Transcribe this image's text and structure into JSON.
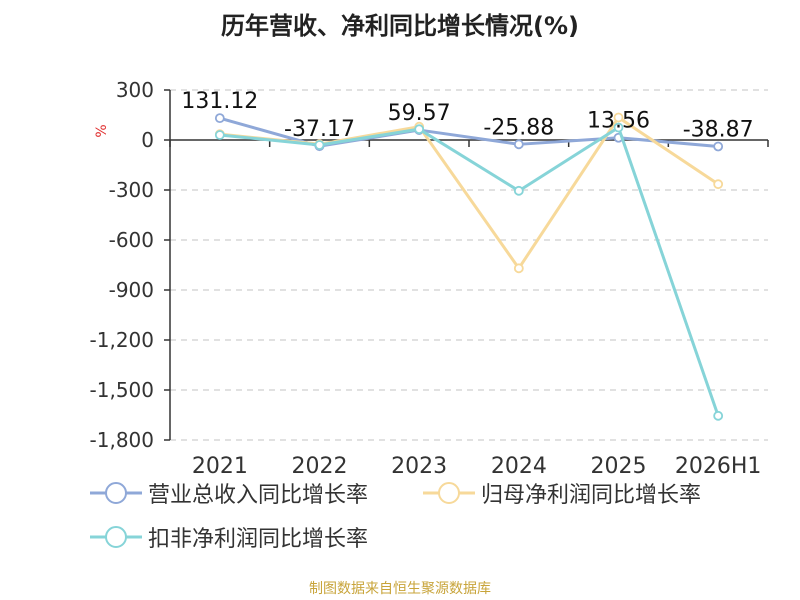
{
  "chart_data": {
    "type": "line",
    "title": "历年营收、净利同比增长情况(%)",
    "ylabel": "%",
    "categories": [
      "2021",
      "2022",
      "2023",
      "2024",
      "2025",
      "2026H1"
    ],
    "ylim": [
      -1800,
      300
    ],
    "yticks": [
      300,
      0,
      -300,
      -600,
      -900,
      -1200,
      -1500,
      -1800
    ],
    "ytick_labels": [
      "300",
      "0",
      "-300",
      "-600",
      "-900",
      "-1,200",
      "-1,500",
      "-1,800"
    ],
    "grid": true,
    "legend_position": "bottom",
    "series": [
      {
        "name": "营业总收入同比增长率",
        "color": "#8fa8d8",
        "values": [
          131.12,
          -37.17,
          59.57,
          -25.88,
          13.56,
          -38.87
        ],
        "labels": [
          "131.12",
          "-37.17",
          "59.57",
          "-25.88",
          "13.56",
          "-38.87"
        ]
      },
      {
        "name": "归母净利润同比增长率",
        "color": "#f7d99a",
        "values": [
          35,
          -25,
          80,
          -770,
          135,
          -265
        ]
      },
      {
        "name": "扣非净利润同比增长率",
        "color": "#86d4d8",
        "values": [
          30,
          -30,
          65,
          -305,
          75,
          -1655
        ]
      }
    ]
  },
  "source": "制图数据来自恒生聚源数据库"
}
